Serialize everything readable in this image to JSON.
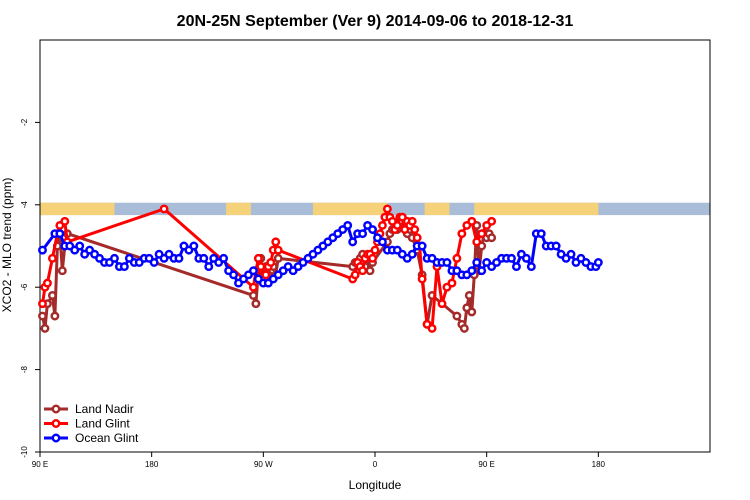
{
  "chart_data": {
    "type": "line",
    "title": "20N-25N September (Ver 9)   2014-09-06 to 2018-12-31",
    "xlabel": "Longitude",
    "ylabel": "XCO2 - MLO trend (ppm)",
    "xlim": [
      -90,
      180
    ],
    "ylim": [
      -10,
      0
    ],
    "x_ticks": [
      {
        "value": -90,
        "label": "90 E"
      },
      {
        "value": -45,
        "label": "180"
      },
      {
        "value": 0,
        "label": "90 W"
      },
      {
        "value": 45,
        "label": "0"
      },
      {
        "value": 90,
        "label": "90 E"
      },
      {
        "value": 135,
        "label": "180"
      }
    ],
    "y_ticks": [
      {
        "value": -2,
        "label": "-2"
      },
      {
        "value": -4,
        "label": "-4"
      },
      {
        "value": -6,
        "label": "-6"
      },
      {
        "value": -8,
        "label": "-8"
      },
      {
        "value": -10,
        "label": "-10"
      }
    ],
    "grid": false,
    "legend_position": "bottom-left",
    "land_strip": {
      "y_range": [
        -4.25,
        -3.95
      ],
      "ocean_color": "#A9BDD8",
      "land_color": "#F5D27A",
      "land_segments": [
        [
          -90,
          -60
        ],
        [
          -15,
          -5
        ],
        [
          20,
          50
        ],
        [
          65,
          75
        ],
        [
          85,
          135
        ]
      ]
    },
    "series": [
      {
        "name": "Land Nadir",
        "color": "#A52A2A",
        "x": [
          -89,
          -88,
          -87,
          -85,
          -84,
          -83,
          -82,
          -81,
          -80,
          -79,
          -4,
          -3,
          -2,
          -1,
          0,
          1,
          2,
          3,
          4,
          5,
          6,
          36,
          37,
          38,
          39,
          40,
          41,
          42,
          43,
          44,
          50,
          51,
          52,
          53,
          54,
          55,
          56,
          57,
          58,
          59,
          60,
          62,
          64,
          66,
          68,
          78,
          80,
          81,
          82,
          83,
          84,
          85,
          86,
          87,
          88,
          89,
          90,
          91,
          92
        ],
        "y": [
          -6.7,
          -7.0,
          -6.4,
          -6.2,
          -6.7,
          -5.0,
          -4.7,
          -5.6,
          -5.0,
          -4.7,
          -6.2,
          -6.4,
          -5.6,
          -5.3,
          -5.7,
          -5.5,
          -5.7,
          -5.4,
          -5.5,
          -5.7,
          -5.3,
          -5.5,
          -5.4,
          -5.4,
          -5.3,
          -5.2,
          -5.5,
          -5.3,
          -5.6,
          -5.4,
          -4.9,
          -4.7,
          -4.6,
          -4.5,
          -4.6,
          -4.4,
          -4.3,
          -4.5,
          -4.7,
          -4.6,
          -4.8,
          -5.1,
          -5.7,
          -6.9,
          -6.2,
          -6.7,
          -6.9,
          -7.0,
          -6.5,
          -6.2,
          -6.6,
          -5.7,
          -4.5,
          -5.6,
          -5.0,
          -4.7,
          -4.8,
          -4.7,
          -4.8
        ]
      },
      {
        "name": "Land Glint",
        "color": "#FF0000",
        "x": [
          -89,
          -88,
          -87,
          -85,
          -83,
          -82,
          -80,
          -79,
          -40,
          -4,
          -3,
          -2,
          -1,
          0,
          1,
          2,
          3,
          4,
          5,
          6,
          36,
          37,
          38,
          39,
          40,
          41,
          42,
          43,
          44,
          45,
          46,
          47,
          48,
          49,
          50,
          51,
          52,
          53,
          54,
          55,
          56,
          57,
          58,
          59,
          60,
          61,
          62,
          63,
          64,
          66,
          68,
          70,
          72,
          74,
          76,
          78,
          80,
          82,
          84,
          86,
          88,
          90,
          92
        ],
        "y": [
          -6.4,
          -6.0,
          -5.9,
          -5.3,
          -4.7,
          -4.5,
          -4.4,
          -4.9,
          -4.1,
          -6.0,
          -5.6,
          -5.3,
          -5.5,
          -5.8,
          -5.7,
          -5.5,
          -5.4,
          -5.1,
          -4.9,
          -5.1,
          -5.8,
          -5.7,
          -5.4,
          -5.5,
          -5.6,
          -5.3,
          -5.2,
          -5.2,
          -5.3,
          -5.1,
          -4.9,
          -4.7,
          -4.5,
          -4.3,
          -4.1,
          -4.3,
          -4.4,
          -4.6,
          -4.5,
          -4.3,
          -4.3,
          -4.6,
          -4.4,
          -4.5,
          -4.4,
          -4.6,
          -4.8,
          -5.0,
          -5.8,
          -6.9,
          -7.0,
          -5.5,
          -6.4,
          -6.0,
          -5.9,
          -5.3,
          -4.7,
          -4.5,
          -4.4,
          -4.9,
          -4.7,
          -4.5,
          -4.4
        ]
      },
      {
        "name": "Ocean Glint",
        "color": "#0000FF",
        "x": [
          -89,
          -84,
          -82,
          -80,
          -78,
          -76,
          -74,
          -72,
          -70,
          -68,
          -66,
          -64,
          -62,
          -60,
          -58,
          -56,
          -54,
          -52,
          -50,
          -48,
          -46,
          -44,
          -42,
          -40,
          -38,
          -36,
          -34,
          -32,
          -30,
          -28,
          -26,
          -24,
          -22,
          -20,
          -18,
          -16,
          -14,
          -12,
          -10,
          -8,
          -6,
          -4,
          -2,
          0,
          2,
          4,
          6,
          8,
          10,
          12,
          14,
          16,
          18,
          20,
          22,
          24,
          26,
          28,
          30,
          32,
          34,
          36,
          38,
          40,
          42,
          44,
          46,
          48,
          50,
          52,
          54,
          56,
          58,
          60,
          62,
          64,
          66,
          68,
          70,
          72,
          74,
          76,
          78,
          80,
          82,
          84,
          86,
          88,
          90,
          92,
          94,
          96,
          98,
          100,
          102,
          104,
          106,
          108,
          110,
          112,
          114,
          116,
          118,
          120,
          122,
          124,
          126,
          128,
          130,
          132,
          134,
          135
        ],
        "y": [
          -5.1,
          -4.7,
          -4.7,
          -5.0,
          -5.0,
          -5.1,
          -5.0,
          -5.2,
          -5.1,
          -5.2,
          -5.3,
          -5.4,
          -5.4,
          -5.3,
          -5.5,
          -5.5,
          -5.3,
          -5.4,
          -5.4,
          -5.3,
          -5.3,
          -5.4,
          -5.2,
          -5.3,
          -5.2,
          -5.3,
          -5.3,
          -5.0,
          -5.1,
          -5.0,
          -5.3,
          -5.3,
          -5.5,
          -5.3,
          -5.4,
          -5.3,
          -5.6,
          -5.7,
          -5.9,
          -5.8,
          -5.7,
          -5.6,
          -5.8,
          -5.9,
          -5.9,
          -5.8,
          -5.7,
          -5.6,
          -5.5,
          -5.6,
          -5.5,
          -5.4,
          -5.3,
          -5.2,
          -5.1,
          -5.0,
          -4.9,
          -4.8,
          -4.7,
          -4.6,
          -4.5,
          -4.9,
          -4.7,
          -4.7,
          -4.5,
          -4.6,
          -4.8,
          -4.9,
          -5.1,
          -5.1,
          -5.1,
          -5.2,
          -5.3,
          -5.2,
          -5.0,
          -5.0,
          -5.3,
          -5.3,
          -5.4,
          -5.4,
          -5.4,
          -5.6,
          -5.6,
          -5.7,
          -5.7,
          -5.6,
          -5.4,
          -5.6,
          -5.4,
          -5.5,
          -5.4,
          -5.3,
          -5.3,
          -5.3,
          -5.5,
          -5.2,
          -5.3,
          -5.5,
          -4.7,
          -4.7,
          -5.0,
          -5.0,
          -5.0,
          -5.2,
          -5.3,
          -5.2,
          -5.4,
          -5.3,
          -5.4,
          -5.5,
          -5.5,
          -5.4
        ]
      }
    ]
  }
}
